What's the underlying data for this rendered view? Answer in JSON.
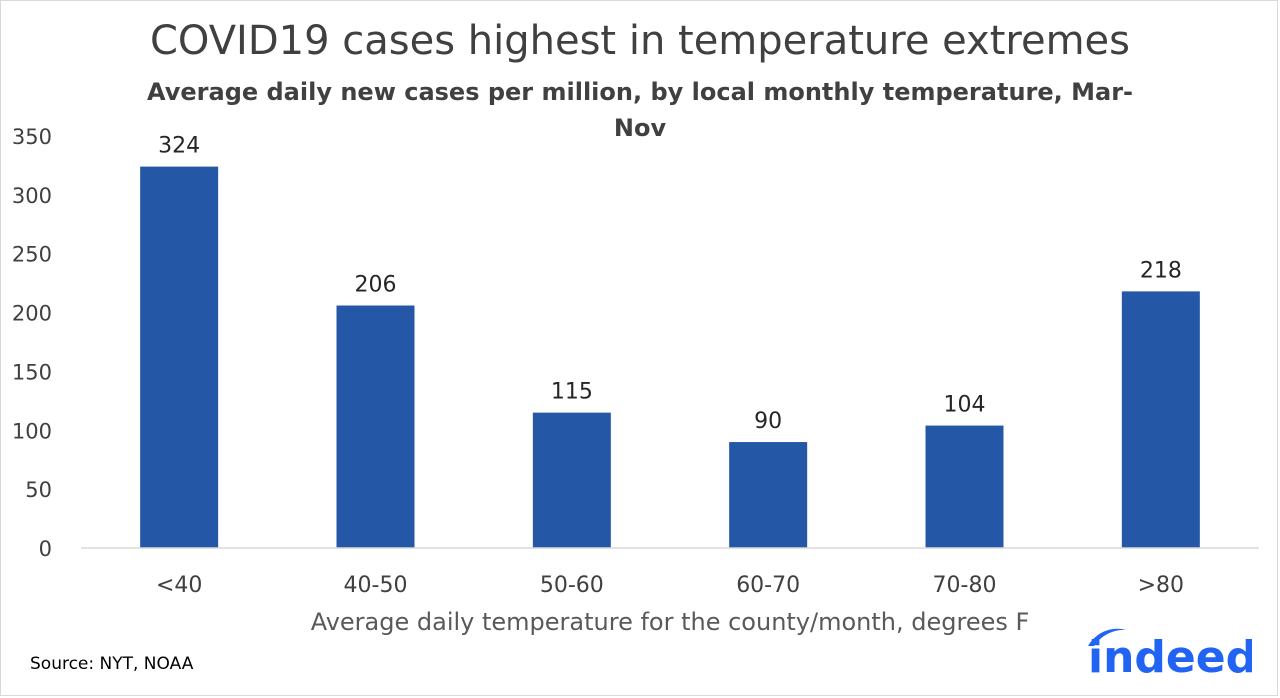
{
  "chart_data": {
    "type": "bar",
    "title": "COVID19 cases highest in temperature extremes",
    "subtitle": "Average daily new cases per million, by local monthly temperature, Mar-Nov",
    "xlabel": "Average daily temperature for the county/month, degrees F",
    "ylabel": "",
    "categories": [
      "<40",
      "40-50",
      "50-60",
      "60-70",
      "70-80",
      ">80"
    ],
    "values": [
      324,
      206,
      115,
      90,
      104,
      218
    ],
    "data_labels": [
      "324",
      "206",
      "115",
      "90",
      "104",
      "218"
    ],
    "yticks": [
      0,
      50,
      100,
      150,
      200,
      250,
      300,
      350
    ],
    "ylim": [
      0,
      350
    ],
    "grid": false,
    "legend": "none",
    "colors": {
      "bar": "#2557a7",
      "axis": "#d9d9d9",
      "text": "#404040"
    }
  },
  "source": "Source: NYT, NOAA",
  "logo": {
    "text": "indeed",
    "color": "#2164f3",
    "icon": "indeed-logo"
  }
}
